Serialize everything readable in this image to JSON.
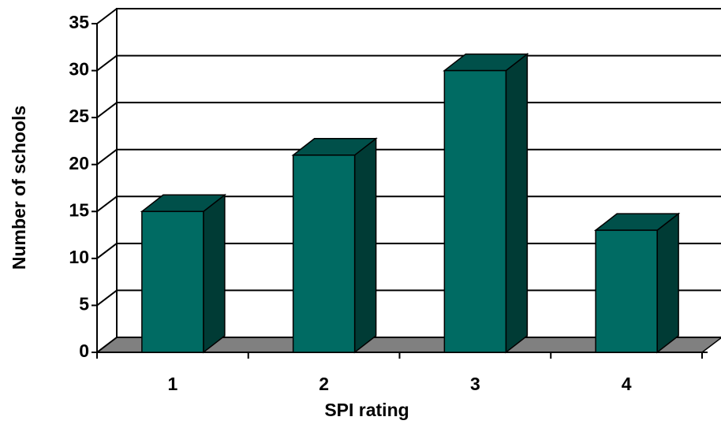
{
  "chart_data": {
    "type": "bar3d",
    "xlabel": "SPI rating",
    "ylabel": "Number of schools",
    "categories": [
      "1",
      "2",
      "3",
      "4"
    ],
    "values": [
      15,
      21,
      30,
      13
    ],
    "color": "#006b63",
    "side_color": "#003b35",
    "top_color": "#00504a",
    "floor_color": "#808080",
    "ylim": [
      0,
      35
    ],
    "yticks": [
      0,
      5,
      10,
      15,
      20,
      25,
      30,
      35
    ],
    "grid": true
  }
}
